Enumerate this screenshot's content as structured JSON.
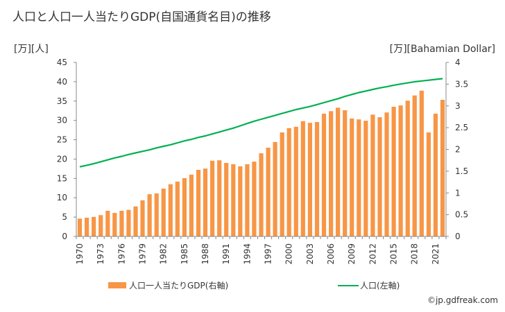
{
  "title": "人口と人口一人当たりGDP(自国通貨名目)の推移",
  "unit_left": "[万][人]",
  "unit_right": "[万][Bahamian Dollar]",
  "legend": {
    "bar_label": "人口一人当たりGDP(右軸)",
    "line_label": "人口(左軸)"
  },
  "credit": "©jp.gdfreak.com",
  "colors": {
    "bar": "#f79646",
    "line": "#00b050",
    "axis": "#888888"
  },
  "chart_data": {
    "type": "bar",
    "title": "人口と人口一人当たりGDP(自国通貨名目)の推移",
    "xlabel": "",
    "ylabel_left": "[万][人]",
    "ylabel_right": "[万][Bahamian Dollar]",
    "x": [
      1970,
      1971,
      1972,
      1973,
      1974,
      1975,
      1976,
      1977,
      1978,
      1979,
      1980,
      1981,
      1982,
      1983,
      1984,
      1985,
      1986,
      1987,
      1988,
      1989,
      1990,
      1991,
      1992,
      1993,
      1994,
      1995,
      1996,
      1997,
      1998,
      1999,
      2000,
      2001,
      2002,
      2003,
      2004,
      2005,
      2006,
      2007,
      2008,
      2009,
      2010,
      2011,
      2012,
      2013,
      2014,
      2015,
      2016,
      2017,
      2018,
      2019,
      2020,
      2021,
      2022
    ],
    "x_tick_labels": [
      "1970",
      "1973",
      "1976",
      "1979",
      "1982",
      "1985",
      "1988",
      "1991",
      "1994",
      "1997",
      "2000",
      "2003",
      "2006",
      "2009",
      "2012",
      "2015",
      "2018",
      "2021"
    ],
    "y_left": {
      "min": 0,
      "max": 45,
      "ticks": [
        0,
        5,
        10,
        15,
        20,
        25,
        30,
        35,
        40,
        45
      ]
    },
    "y_right": {
      "min": 0,
      "max": 4,
      "ticks": [
        "0",
        "0.5",
        "1",
        "1.5",
        "2",
        "2.5",
        "3",
        "3.5",
        "4"
      ]
    },
    "series": [
      {
        "name": "人口一人当たりGDP(右軸)",
        "type": "bar",
        "axis": "right",
        "values": [
          0.41,
          0.43,
          0.45,
          0.49,
          0.59,
          0.54,
          0.59,
          0.61,
          0.69,
          0.83,
          0.97,
          0.99,
          1.1,
          1.2,
          1.26,
          1.34,
          1.42,
          1.53,
          1.56,
          1.74,
          1.75,
          1.69,
          1.66,
          1.61,
          1.66,
          1.72,
          1.91,
          2.04,
          2.17,
          2.39,
          2.49,
          2.52,
          2.65,
          2.61,
          2.63,
          2.82,
          2.88,
          2.96,
          2.9,
          2.71,
          2.69,
          2.66,
          2.8,
          2.74,
          2.85,
          2.98,
          3.01,
          3.12,
          3.24,
          3.35,
          2.39,
          2.82,
          3.14
        ]
      },
      {
        "name": "人口(左軸)",
        "type": "line",
        "axis": "left",
        "values": [
          18.0,
          18.4,
          18.8,
          19.3,
          19.8,
          20.3,
          20.7,
          21.2,
          21.6,
          22.0,
          22.4,
          22.9,
          23.3,
          23.7,
          24.2,
          24.7,
          25.1,
          25.6,
          26.0,
          26.5,
          27.0,
          27.5,
          28.0,
          28.6,
          29.2,
          29.8,
          30.3,
          30.8,
          31.3,
          31.8,
          32.3,
          32.8,
          33.2,
          33.6,
          34.1,
          34.6,
          35.1,
          35.6,
          36.2,
          36.7,
          37.2,
          37.6,
          38.0,
          38.4,
          38.7,
          39.1,
          39.4,
          39.7,
          40.0,
          40.2,
          40.4,
          40.6,
          40.8
        ]
      }
    ],
    "grid": false,
    "legend_position": "bottom"
  }
}
